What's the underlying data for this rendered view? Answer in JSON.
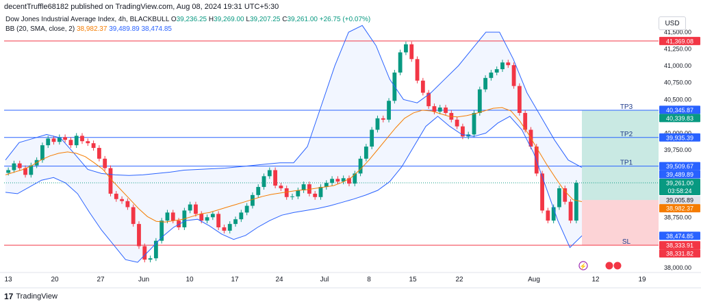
{
  "header": {
    "caption": "decentTruffle68182 published on TradingView.com, Aug 08, 2024 19:31 UTC+5:30"
  },
  "legend": {
    "symbol": "Dow Jones Industrial Average Index, 4h, BLACKBULL",
    "open_label": "O",
    "open": "39,236.25",
    "high_label": "H",
    "high": "39,269.00",
    "low_label": "L",
    "low": "39,207.25",
    "close_label": "C",
    "close": "39,261.00",
    "change": "+26.75 (+0.07%)",
    "bb_label": "BB (20, SMA, close, 2)",
    "bb_basis": "38,982.37",
    "bb_upper": "39,489.89",
    "bb_lower": "38,474.85"
  },
  "currency_button": "USD",
  "footer": {
    "brand": "TradingView"
  },
  "colors": {
    "up": "#089981",
    "down": "#f23645",
    "band": "#2962ff",
    "basis": "#f57c00",
    "line_red": "#f23645",
    "line_blue": "#2962ff"
  },
  "chart_data": {
    "type": "candlestick",
    "title": "",
    "y_range": [
      37950,
      41650
    ],
    "y_ticks": [
      38000,
      38250,
      38500,
      38750,
      39000,
      39250,
      39500,
      39750,
      40000,
      40250,
      40500,
      40750,
      41000,
      41250,
      41500
    ],
    "y_tick_labels": [
      "38,000.00",
      "38,250.00",
      "38,500.00",
      "38,750.00",
      "39,000.00",
      "39,250.00",
      "39,500.00",
      "39,750.00",
      "40,000.00",
      "40,250.00",
      "40,500.00",
      "40,750.00",
      "41,000.00",
      "41,250.00",
      "41,500.00"
    ],
    "x_labels": [
      "13",
      "20",
      "27",
      "Jun",
      "10",
      "17",
      "24",
      "Jul",
      "8",
      "15",
      "22",
      "Aug",
      "12",
      "19"
    ],
    "grid": false,
    "horizontal_levels": [
      {
        "value": 41369.08,
        "color": "red"
      },
      {
        "value": 40339.83,
        "color": "blue",
        "text": "TP3"
      },
      {
        "value": 39935.39,
        "color": "blue",
        "text": "TP2"
      },
      {
        "value": 39509.67,
        "color": "blue",
        "text": "TP1"
      },
      {
        "value": 38333.91,
        "color": "red",
        "text": "SL"
      }
    ],
    "price_labels": [
      {
        "text": "41,369.08",
        "value": 41369.08,
        "color": "#f23645"
      },
      {
        "text": "40,345.87",
        "value": 40345.87,
        "color": "#2962ff"
      },
      {
        "text": "40,339.83",
        "value": 40339.83,
        "color": "#089981"
      },
      {
        "text": "39,935.39",
        "value": 39935.39,
        "color": "#2962ff"
      },
      {
        "text": "39,509.67",
        "value": 39509.67,
        "color": "#2962ff"
      },
      {
        "text": "39,489.89",
        "value": 39489.89,
        "color": "#2962ff"
      },
      {
        "text": "39,261.00",
        "value": 39261.0,
        "color": "#089981",
        "sub": "03:58:24"
      },
      {
        "text": "39,005.89",
        "value": 39005.89,
        "color": "#131722"
      },
      {
        "text": "38,982.37",
        "value": 38982.37,
        "color": "#f57c00"
      },
      {
        "text": "38,474.85",
        "value": 38474.85,
        "color": "#2962ff"
      },
      {
        "text": "38,333.91",
        "value": 38333.91,
        "color": "#f23645"
      },
      {
        "text": "38,331.82",
        "value": 38331.82,
        "color": "#f23645"
      }
    ],
    "position": {
      "entry": 39005.89,
      "target": 40339.83,
      "stop": 38333.91
    },
    "series": [
      {
        "name": "close",
        "values": [
          39450,
          39550,
          39480,
          39380,
          39520,
          39600,
          39820,
          39920,
          39870,
          39940,
          39900,
          39820,
          39960,
          39880,
          39850,
          39780,
          39620,
          39480,
          39100,
          39020,
          38990,
          38900,
          38650,
          38320,
          38120,
          38140,
          38400,
          38700,
          38820,
          38700,
          38600,
          38850,
          38940,
          38800,
          38700,
          38750,
          38800,
          38600,
          38550,
          38650,
          38720,
          38820,
          38920,
          39080,
          39200,
          39360,
          39450,
          39220,
          39180,
          39050,
          39060,
          39150,
          39240,
          39100,
          39050,
          39200,
          39260,
          39320,
          39280,
          39330,
          39250,
          39400,
          39620,
          39800,
          40050,
          40220,
          40200,
          40480,
          40900,
          41200,
          41320,
          41100,
          40780,
          40600,
          40400,
          40320,
          40380,
          40300,
          40200,
          40100,
          39950,
          39980,
          40300,
          40650,
          40820,
          40900,
          40950,
          41050,
          41010,
          40700,
          40300,
          40050,
          39800,
          39400,
          38850,
          38700,
          38900,
          39180,
          38980,
          38700,
          39261
        ]
      },
      {
        "name": "BB basis",
        "values": [
          39380,
          39420,
          39460,
          39520,
          39600,
          39660,
          39700,
          39720,
          39700,
          39650,
          39560,
          39460,
          39300,
          39160,
          39020,
          38880,
          38760,
          38690,
          38680,
          38700,
          38720,
          38760,
          38800,
          38820,
          38860,
          38900,
          38940,
          38980,
          39020,
          39060,
          39090,
          39110,
          39130,
          39150,
          39160,
          39180,
          39200,
          39220,
          39270,
          39340,
          39460,
          39600,
          39760,
          39920,
          40080,
          40220,
          40300,
          40340,
          40330,
          40290,
          40250,
          40240,
          40260,
          40290,
          40330,
          40370,
          40380,
          40330,
          40180,
          39980,
          39760,
          39540,
          39340,
          39150,
          39010,
          38982
        ]
      },
      {
        "name": "BB upper",
        "values": [
          39600,
          39860,
          39920,
          39980,
          39930,
          39700,
          39460,
          39400,
          39380,
          39370,
          39380,
          39400,
          39420,
          39450,
          39460,
          39470,
          39480,
          39500,
          39520,
          39540,
          39560,
          39560,
          39800,
          40400,
          41000,
          41500,
          41600,
          41300,
          40800,
          40500,
          40450,
          40600,
          40800,
          41000,
          41250,
          41500,
          41500,
          41100,
          40600,
          40250,
          39900,
          39600,
          39490
        ]
      },
      {
        "name": "BB lower",
        "values": [
          39120,
          39100,
          39200,
          39300,
          39340,
          39260,
          39100,
          38820,
          38560,
          38340,
          38120,
          38080,
          38260,
          38450,
          38600,
          38700,
          38720,
          38620,
          38500,
          38420,
          38480,
          38600,
          38700,
          38780,
          38820,
          38850,
          38880,
          38920,
          38970,
          39020,
          39080,
          39150,
          39280,
          39500,
          39800,
          40100,
          40250,
          40100,
          39980,
          39950,
          40000,
          40150,
          40250,
          40050,
          39700,
          39200,
          38700,
          38300,
          38474
        ]
      }
    ]
  }
}
